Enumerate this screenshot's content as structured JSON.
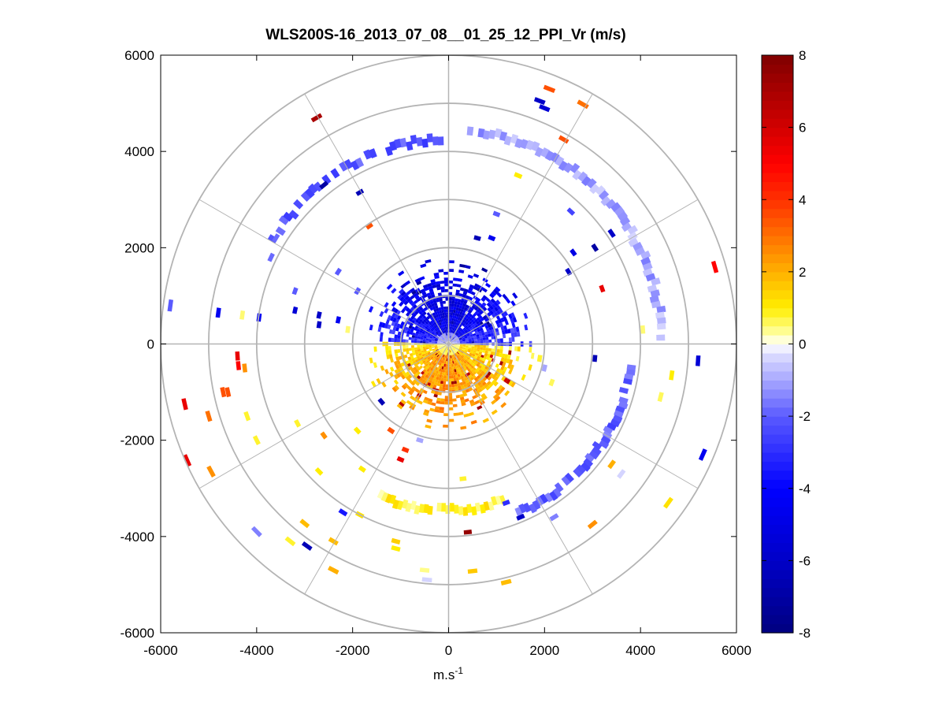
{
  "chart_data": {
    "type": "heatmap",
    "title": "WLS200S-16_2013_07_08__01_25_12_PPI_Vr (m/s)",
    "xlabel_base": "m.s",
    "xlabel_exponent": "-1",
    "ylabel": "",
    "xlim": [
      -6000,
      6000
    ],
    "ylim": [
      -6000,
      6000
    ],
    "xticks": [
      -6000,
      -4000,
      -2000,
      0,
      2000,
      4000,
      6000
    ],
    "yticks": [
      -6000,
      -4000,
      -2000,
      0,
      2000,
      4000,
      6000
    ],
    "polar_grid": {
      "range_rings_m": [
        1000,
        2000,
        3000,
        4000,
        5000,
        6000
      ],
      "spoke_angles_deg": [
        0,
        30,
        60,
        90,
        120,
        150,
        180,
        210,
        240,
        270,
        300,
        330
      ],
      "grid": true
    },
    "colorbar": {
      "min": -8,
      "max": 8,
      "ticks": [
        -8,
        -6,
        -4,
        -2,
        0,
        2,
        4,
        6,
        8
      ],
      "colormap": "blue-white-yellow-red",
      "stops": [
        {
          "v": -8,
          "color": "#00007f"
        },
        {
          "v": -6,
          "color": "#0000c8"
        },
        {
          "v": -4,
          "color": "#0000ff"
        },
        {
          "v": -2,
          "color": "#5a5aff"
        },
        {
          "v": -0.3,
          "color": "#dcdcff"
        },
        {
          "v": 0,
          "color": "#ffffff"
        },
        {
          "v": 0.3,
          "color": "#ffffa0"
        },
        {
          "v": 1,
          "color": "#ffee00"
        },
        {
          "v": 2,
          "color": "#ffb000"
        },
        {
          "v": 3,
          "color": "#ff7000"
        },
        {
          "v": 4,
          "color": "#ff3000"
        },
        {
          "v": 5,
          "color": "#ff0000"
        },
        {
          "v": 6,
          "color": "#d20000"
        },
        {
          "v": 8,
          "color": "#800000"
        }
      ]
    },
    "near_field": {
      "description_note": "dense returns within ~1800 m: negative Vr north, positive Vr south",
      "max_range_m": 1800
    },
    "outer_arcs": [
      {
        "name": "northern arc",
        "range_m": 4250,
        "az_start": 300,
        "az_end": 358,
        "vr": -2.2
      },
      {
        "name": "ne arc",
        "range_m": 4450,
        "az_start": 5,
        "az_end": 88,
        "vr": -1.0
      },
      {
        "name": "se arc",
        "range_m": 3800,
        "az_start": 95,
        "az_end": 158,
        "vr": -2.0
      },
      {
        "name": "south arc",
        "range_m": 3450,
        "az_start": 160,
        "az_end": 205,
        "vr": 0.8
      }
    ],
    "scattered_cells": [
      {
        "x": 2100,
        "y": 5300,
        "vr": 3.5
      },
      {
        "x": 2800,
        "y": 4980,
        "vr": 3.0
      },
      {
        "x": 1900,
        "y": 5050,
        "vr": -6.0
      },
      {
        "x": 2000,
        "y": 4900,
        "vr": -5.5
      },
      {
        "x": 2400,
        "y": 4250,
        "vr": 3.5
      },
      {
        "x": -2750,
        "y": 4700,
        "vr": 7.0
      },
      {
        "x": -2600,
        "y": 3300,
        "vr": -7.0
      },
      {
        "x": -1850,
        "y": 3150,
        "vr": -6.5
      },
      {
        "x": -1650,
        "y": 2450,
        "vr": 3.5
      },
      {
        "x": 1450,
        "y": 3500,
        "vr": 1.0
      },
      {
        "x": 1000,
        "y": 2700,
        "vr": -2.0
      },
      {
        "x": 600,
        "y": 2200,
        "vr": -6.5
      },
      {
        "x": 900,
        "y": 2200,
        "vr": -4.5
      },
      {
        "x": 2550,
        "y": 2750,
        "vr": -2.5
      },
      {
        "x": 3400,
        "y": 2300,
        "vr": -6.0
      },
      {
        "x": 3050,
        "y": 2000,
        "vr": -7.0
      },
      {
        "x": 2600,
        "y": 1900,
        "vr": -5.0
      },
      {
        "x": 2500,
        "y": 1500,
        "vr": -6.0
      },
      {
        "x": 3200,
        "y": 1150,
        "vr": 5.5
      },
      {
        "x": 5550,
        "y": 1600,
        "vr": 5.0
      },
      {
        "x": 4050,
        "y": 300,
        "vr": 0.5
      },
      {
        "x": 3050,
        "y": -300,
        "vr": -6.5
      },
      {
        "x": 5200,
        "y": -350,
        "vr": -5.5
      },
      {
        "x": 4650,
        "y": -650,
        "vr": 1.0
      },
      {
        "x": 4420,
        "y": -1100,
        "vr": 0.6
      },
      {
        "x": 5300,
        "y": -2300,
        "vr": -4.5
      },
      {
        "x": 3400,
        "y": -2500,
        "vr": 2.0
      },
      {
        "x": 3600,
        "y": -2700,
        "vr": -0.4
      },
      {
        "x": 4580,
        "y": -3300,
        "vr": 1.2
      },
      {
        "x": 3000,
        "y": -3750,
        "vr": 2.5
      },
      {
        "x": 2200,
        "y": -3600,
        "vr": -1.5
      },
      {
        "x": 1500,
        "y": -3600,
        "vr": -6.0
      },
      {
        "x": 1200,
        "y": -3300,
        "vr": -3.0
      },
      {
        "x": 1200,
        "y": -4950,
        "vr": 1.8
      },
      {
        "x": 500,
        "y": -4720,
        "vr": 1.6
      },
      {
        "x": 400,
        "y": -3910,
        "vr": 7.5
      },
      {
        "x": -500,
        "y": -4700,
        "vr": 0.4
      },
      {
        "x": -450,
        "y": -4900,
        "vr": -0.4
      },
      {
        "x": 300,
        "y": -2800,
        "vr": 0.8
      },
      {
        "x": -1100,
        "y": -4100,
        "vr": 1.5
      },
      {
        "x": -1100,
        "y": -4250,
        "vr": 1.0
      },
      {
        "x": -1850,
        "y": -3550,
        "vr": 1.2
      },
      {
        "x": -2200,
        "y": -3500,
        "vr": -3.5
      },
      {
        "x": -2400,
        "y": -4700,
        "vr": 2.0
      },
      {
        "x": -2950,
        "y": -4200,
        "vr": -6.5
      },
      {
        "x": -3300,
        "y": -4100,
        "vr": 0.8
      },
      {
        "x": -3000,
        "y": -3730,
        "vr": 1.8
      },
      {
        "x": -2400,
        "y": -4100,
        "vr": 1.8
      },
      {
        "x": -4000,
        "y": -3900,
        "vr": -1.5
      },
      {
        "x": -2700,
        "y": -2650,
        "vr": 1.0
      },
      {
        "x": -1800,
        "y": -2600,
        "vr": 1.0
      },
      {
        "x": -2600,
        "y": -1900,
        "vr": 2.5
      },
      {
        "x": -1900,
        "y": -1800,
        "vr": 1.0
      },
      {
        "x": -3150,
        "y": -1650,
        "vr": 0.8
      },
      {
        "x": -4200,
        "y": -1500,
        "vr": 0.8
      },
      {
        "x": -4000,
        "y": -2000,
        "vr": 0.8
      },
      {
        "x": -4600,
        "y": -1000,
        "vr": 3.5
      },
      {
        "x": -4700,
        "y": -1000,
        "vr": 3.5
      },
      {
        "x": -5000,
        "y": -1500,
        "vr": 3.0
      },
      {
        "x": -5500,
        "y": -1250,
        "vr": 5.5
      },
      {
        "x": -5450,
        "y": -2420,
        "vr": 5.5
      },
      {
        "x": -4950,
        "y": -2650,
        "vr": 2.5
      },
      {
        "x": -4400,
        "y": -250,
        "vr": 5.5
      },
      {
        "x": -4380,
        "y": -450,
        "vr": 5.0
      },
      {
        "x": -4250,
        "y": -500,
        "vr": 2.5
      },
      {
        "x": -5800,
        "y": 800,
        "vr": -2.0
      },
      {
        "x": -4800,
        "y": 650,
        "vr": -4.5
      },
      {
        "x": -4300,
        "y": 600,
        "vr": 0.5
      },
      {
        "x": -3950,
        "y": 550,
        "vr": -4.5
      },
      {
        "x": -3200,
        "y": 1100,
        "vr": -2.0
      },
      {
        "x": -3200,
        "y": 700,
        "vr": -5.5
      },
      {
        "x": -2700,
        "y": 600,
        "vr": -6.0
      },
      {
        "x": -2700,
        "y": 400,
        "vr": -6.0
      },
      {
        "x": -2300,
        "y": 500,
        "vr": -4.5
      },
      {
        "x": -2100,
        "y": 300,
        "vr": 0.5
      },
      {
        "x": -3600,
        "y": 2200,
        "vr": -1.8
      },
      {
        "x": -3700,
        "y": 1800,
        "vr": -1.8
      },
      {
        "x": -2300,
        "y": 1500,
        "vr": -2.0
      },
      {
        "x": -1900,
        "y": 1100,
        "vr": -2.0
      },
      {
        "x": -1400,
        "y": -1200,
        "vr": -6.5
      },
      {
        "x": -1200,
        "y": -1800,
        "vr": 3.5
      },
      {
        "x": -900,
        "y": -2200,
        "vr": 4.0
      },
      {
        "x": -600,
        "y": -2000,
        "vr": -1.0
      },
      {
        "x": -1000,
        "y": -2400,
        "vr": 5.5
      },
      {
        "x": 1900,
        "y": -300,
        "vr": 0.8
      },
      {
        "x": 2150,
        "y": -800,
        "vr": 0.6
      },
      {
        "x": 2000,
        "y": -500,
        "vr": -1.0
      }
    ]
  }
}
